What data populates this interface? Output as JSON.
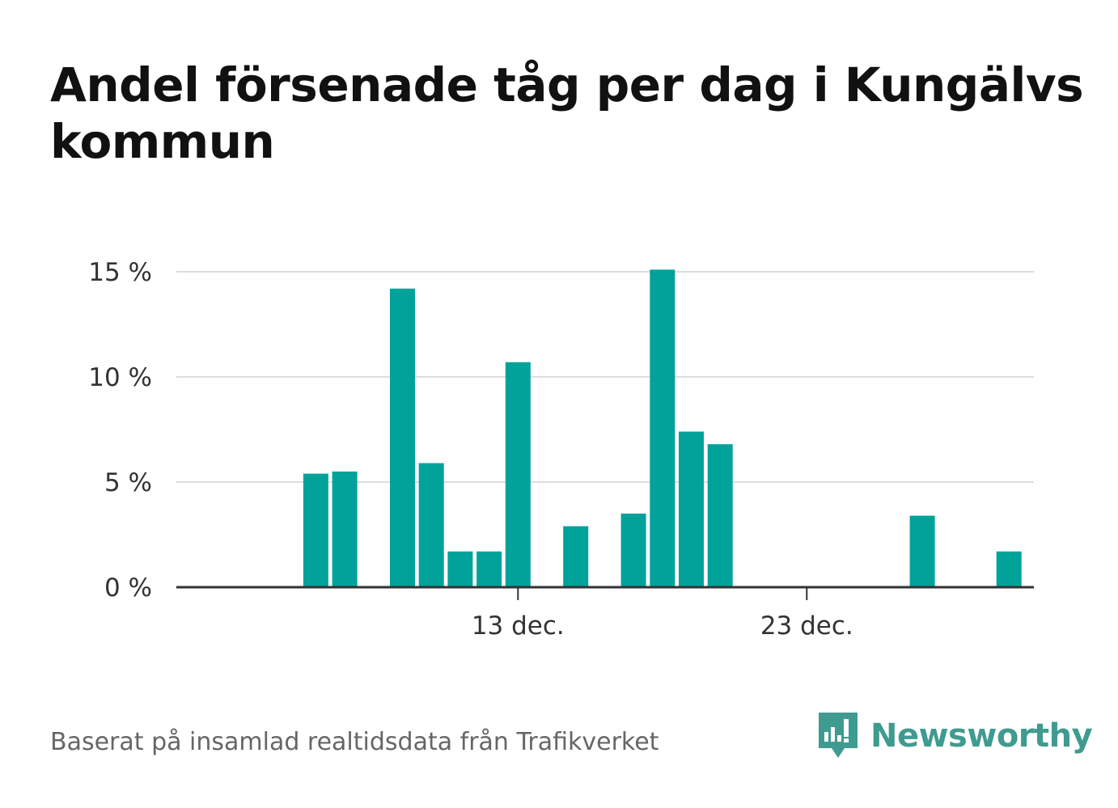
{
  "title": "Andel försenade tåg per dag i Kungälvs kommun",
  "source": "Baserat på insamlad realtidsdata från Trafikverket",
  "brand": {
    "name": "Newsworthy",
    "icon": "newsworthy-logo-icon",
    "color": "#3f9b8f"
  },
  "chart_data": {
    "type": "bar",
    "title": "Andel försenade tåg per dag i Kungälvs kommun",
    "xlabel": "",
    "ylabel": "",
    "x": [
      "4 dec.",
      "5 dec.",
      "6 dec.",
      "7 dec.",
      "8 dec.",
      "9 dec.",
      "10 dec.",
      "11 dec.",
      "12 dec.",
      "13 dec.",
      "14 dec.",
      "15 dec.",
      "16 dec.",
      "17 dec.",
      "18 dec.",
      "19 dec.",
      "20 dec.",
      "21 dec.",
      "22 dec.",
      "23 dec.",
      "24 dec.",
      "25 dec.",
      "26 dec.",
      "27 dec.",
      "28 dec.",
      "29 dec.",
      "30 dec.",
      "31 dec."
    ],
    "values": [
      null,
      null,
      5.4,
      5.5,
      null,
      14.2,
      5.9,
      1.7,
      1.7,
      10.7,
      null,
      2.9,
      null,
      3.5,
      15.1,
      7.4,
      6.8,
      0,
      0,
      0,
      0,
      0,
      0,
      3.4,
      null,
      null,
      1.7,
      null
    ],
    "x_tick_labels": [
      {
        "label": "13 dec.",
        "index": 9
      },
      {
        "label": "23 dec.",
        "index": 19
      }
    ],
    "y_ticks": [
      0,
      5,
      10,
      15
    ],
    "y_tick_labels": [
      "0 %",
      "5 %",
      "10 %",
      "15 %"
    ],
    "ylim": [
      0,
      15.5
    ],
    "grid": true,
    "bar_color": "#00a29a"
  }
}
